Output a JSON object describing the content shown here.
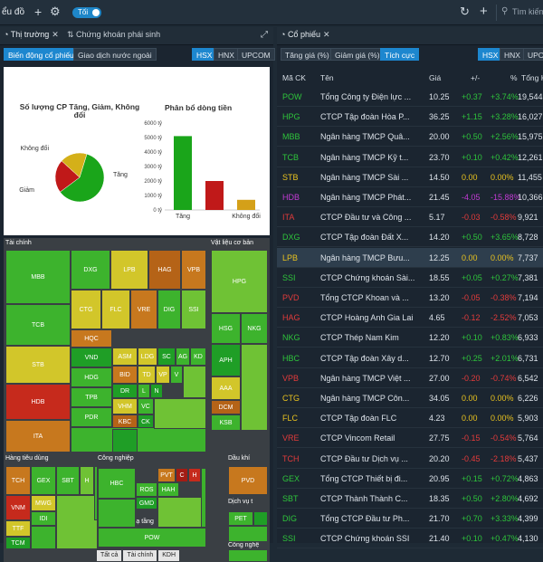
{
  "topbar": {
    "title": "ểu đồ",
    "toggle_label": "Tối",
    "search_placeholder": "Tìm kiếm"
  },
  "left_panel": {
    "tabs": [
      {
        "label": "Thị trường"
      },
      {
        "label": "Chứng khoán phái sinh"
      }
    ],
    "subtabs": [
      "Biến động cổ phiếu",
      "Giao dịch nước ngoài"
    ],
    "exchanges": [
      "HSX",
      "HNX",
      "UPCOM"
    ]
  },
  "chart_data": [
    {
      "type": "pie",
      "title": "Số lượng CP Tăng, Giảm, Không đổi",
      "labels": [
        "Tăng",
        "Giảm",
        "Không đổi"
      ],
      "values": [
        60,
        22,
        18
      ],
      "colors": [
        "#1aa51a",
        "#c01919",
        "#d4b019"
      ]
    },
    {
      "type": "bar",
      "title": "Phân bổ dòng tiền",
      "categories": [
        "Tăng",
        "Giảm",
        "Không đổi"
      ],
      "values": [
        5100,
        2000,
        700
      ],
      "colors": [
        "#1aa51a",
        "#c01919",
        "#d4a019"
      ],
      "yticks": [
        "0 tỷ",
        "1000 tỷ",
        "2000 tỷ",
        "3000 tỷ",
        "4000 tỷ",
        "5000 tỷ",
        "6000 tỷ"
      ],
      "ylim": [
        0,
        6000
      ]
    }
  ],
  "treemap": {
    "sectors": [
      "Tài chính",
      "Vật liệu cơ bản",
      "Hàng tiêu dùng",
      "Công nghiệp",
      "Dầu khí",
      "Dịch vụ t",
      "Các dịch vụ hạ tầng",
      "Công nghệ"
    ],
    "tiles": [
      "MBB",
      "DXG",
      "LPB",
      "HAG",
      "VPB",
      "TCB",
      "CTG",
      "FLC",
      "VRE",
      "DIG",
      "SSI",
      "STB",
      "HQC",
      "VND",
      "ASM",
      "LDG",
      "SC",
      "AG",
      "KD",
      "HDB",
      "HDG",
      "BID",
      "TD",
      "VP",
      "V",
      "DR",
      "L",
      "N",
      "ITA",
      "TPB",
      "VHM",
      "VC",
      "PDR",
      "KBC",
      "CK",
      "HPG",
      "HSG",
      "NKG",
      "APH",
      "AAA",
      "DCM",
      "KSB",
      "TCH",
      "GEX",
      "SBT",
      "H",
      "HBC",
      "PVT",
      "C",
      "H",
      "PVD",
      "VNM",
      "MWG",
      "IDI",
      "TTF",
      "TCM",
      "ROS",
      "GMD",
      "HAH",
      "PET",
      "POW"
    ],
    "breadcrumb": [
      "Tất cả",
      "Tài chính",
      "KDH"
    ]
  },
  "right_panel": {
    "tab_label": "Cổ phiếu",
    "filters": [
      "Tăng giá (%)",
      "Giảm giá (%)",
      "Tích cực"
    ],
    "exchanges": [
      "HSX",
      "HNX",
      "UPCOM"
    ],
    "columns": [
      "Mã CK",
      "Tên",
      "Giá",
      "+/-",
      "%",
      "Tổng KL"
    ],
    "rows": [
      {
        "code": "POW",
        "name": "Tổng Công ty Điện lực ...",
        "price": "10.25",
        "chg": "+0.37",
        "pct": "+3.74%",
        "vol": "19,544",
        "c": "up"
      },
      {
        "code": "HPG",
        "name": "CTCP Tập đoàn Hòa P...",
        "price": "36.25",
        "chg": "+1.15",
        "pct": "+3.28%",
        "vol": "16,027",
        "c": "up"
      },
      {
        "code": "MBB",
        "name": "Ngân hàng TMCP Quâ...",
        "price": "20.00",
        "chg": "+0.50",
        "pct": "+2.56%",
        "vol": "15,975",
        "c": "up"
      },
      {
        "code": "TCB",
        "name": "Ngân hàng TMCP Kỹ t...",
        "price": "23.70",
        "chg": "+0.10",
        "pct": "+0.42%",
        "vol": "12,261",
        "c": "up"
      },
      {
        "code": "STB",
        "name": "Ngân hàng TMCP Sài ...",
        "price": "14.50",
        "chg": "0.00",
        "pct": "0.00%",
        "vol": "11,455",
        "c": "ref"
      },
      {
        "code": "HDB",
        "name": "Ngân hàng TMCP Phát...",
        "price": "21.45",
        "chg": "-4.05",
        "pct": "-15.88%",
        "vol": "10,366",
        "c": "purple"
      },
      {
        "code": "ITA",
        "name": "CTCP Đầu tư và Công ...",
        "price": "5.17",
        "chg": "-0.03",
        "pct": "-0.58%",
        "vol": "9,921",
        "c": "down"
      },
      {
        "code": "DXG",
        "name": "CTCP Tập đoàn Đất X...",
        "price": "14.20",
        "chg": "+0.50",
        "pct": "+3.65%",
        "vol": "8,728",
        "c": "up"
      },
      {
        "code": "LPB",
        "name": "Ngân hàng TMCP Bưu...",
        "price": "12.25",
        "chg": "0.00",
        "pct": "0.00%",
        "vol": "7,737",
        "c": "ref"
      },
      {
        "code": "SSI",
        "name": "CTCP Chứng khoán Sài...",
        "price": "18.55",
        "chg": "+0.05",
        "pct": "+0.27%",
        "vol": "7,381",
        "c": "up"
      },
      {
        "code": "PVD",
        "name": "Tổng CTCP Khoan và ...",
        "price": "13.20",
        "chg": "-0.05",
        "pct": "-0.38%",
        "vol": "7,194",
        "c": "down"
      },
      {
        "code": "HAG",
        "name": "CTCP Hoàng Anh Gia Lai",
        "price": "4.65",
        "chg": "-0.12",
        "pct": "-2.52%",
        "vol": "7,053",
        "c": "down"
      },
      {
        "code": "NKG",
        "name": "CTCP Thép Nam Kim",
        "price": "12.20",
        "chg": "+0.10",
        "pct": "+0.83%",
        "vol": "6,933",
        "c": "up"
      },
      {
        "code": "HBC",
        "name": "CTCP Tập đoàn Xây d...",
        "price": "12.70",
        "chg": "+0.25",
        "pct": "+2.01%",
        "vol": "6,731",
        "c": "up"
      },
      {
        "code": "VPB",
        "name": "Ngân hàng TMCP Việt ...",
        "price": "27.00",
        "chg": "-0.20",
        "pct": "-0.74%",
        "vol": "6,542",
        "c": "down"
      },
      {
        "code": "CTG",
        "name": "Ngân hàng TMCP Côn...",
        "price": "34.05",
        "chg": "0.00",
        "pct": "0.00%",
        "vol": "6,226",
        "c": "ref"
      },
      {
        "code": "FLC",
        "name": "CTCP Tập đoàn FLC",
        "price": "4.23",
        "chg": "0.00",
        "pct": "0.00%",
        "vol": "5,903",
        "c": "ref"
      },
      {
        "code": "VRE",
        "name": "CTCP Vincom Retail",
        "price": "27.75",
        "chg": "-0.15",
        "pct": "-0.54%",
        "vol": "5,764",
        "c": "down"
      },
      {
        "code": "TCH",
        "name": "CTCP Đầu tư Dịch vụ ...",
        "price": "20.20",
        "chg": "-0.45",
        "pct": "-2.18%",
        "vol": "5,437",
        "c": "down"
      },
      {
        "code": "GEX",
        "name": "Tổng CTCP Thiết bị đi...",
        "price": "20.95",
        "chg": "+0.15",
        "pct": "+0.72%",
        "vol": "4,863",
        "c": "up"
      },
      {
        "code": "SBT",
        "name": "CTCP Thành Thành C...",
        "price": "18.35",
        "chg": "+0.50",
        "pct": "+2.80%",
        "vol": "4,692",
        "c": "up"
      },
      {
        "code": "DIG",
        "name": "Tổng CTCP Đầu tư Ph...",
        "price": "21.70",
        "chg": "+0.70",
        "pct": "+3.33%",
        "vol": "4,399",
        "c": "up"
      },
      {
        "code": "SSI",
        "name": "CTCP Chứng khoán SSI",
        "price": "21.40",
        "chg": "+0.10",
        "pct": "+0.47%",
        "vol": "4,130",
        "c": "up"
      }
    ]
  }
}
